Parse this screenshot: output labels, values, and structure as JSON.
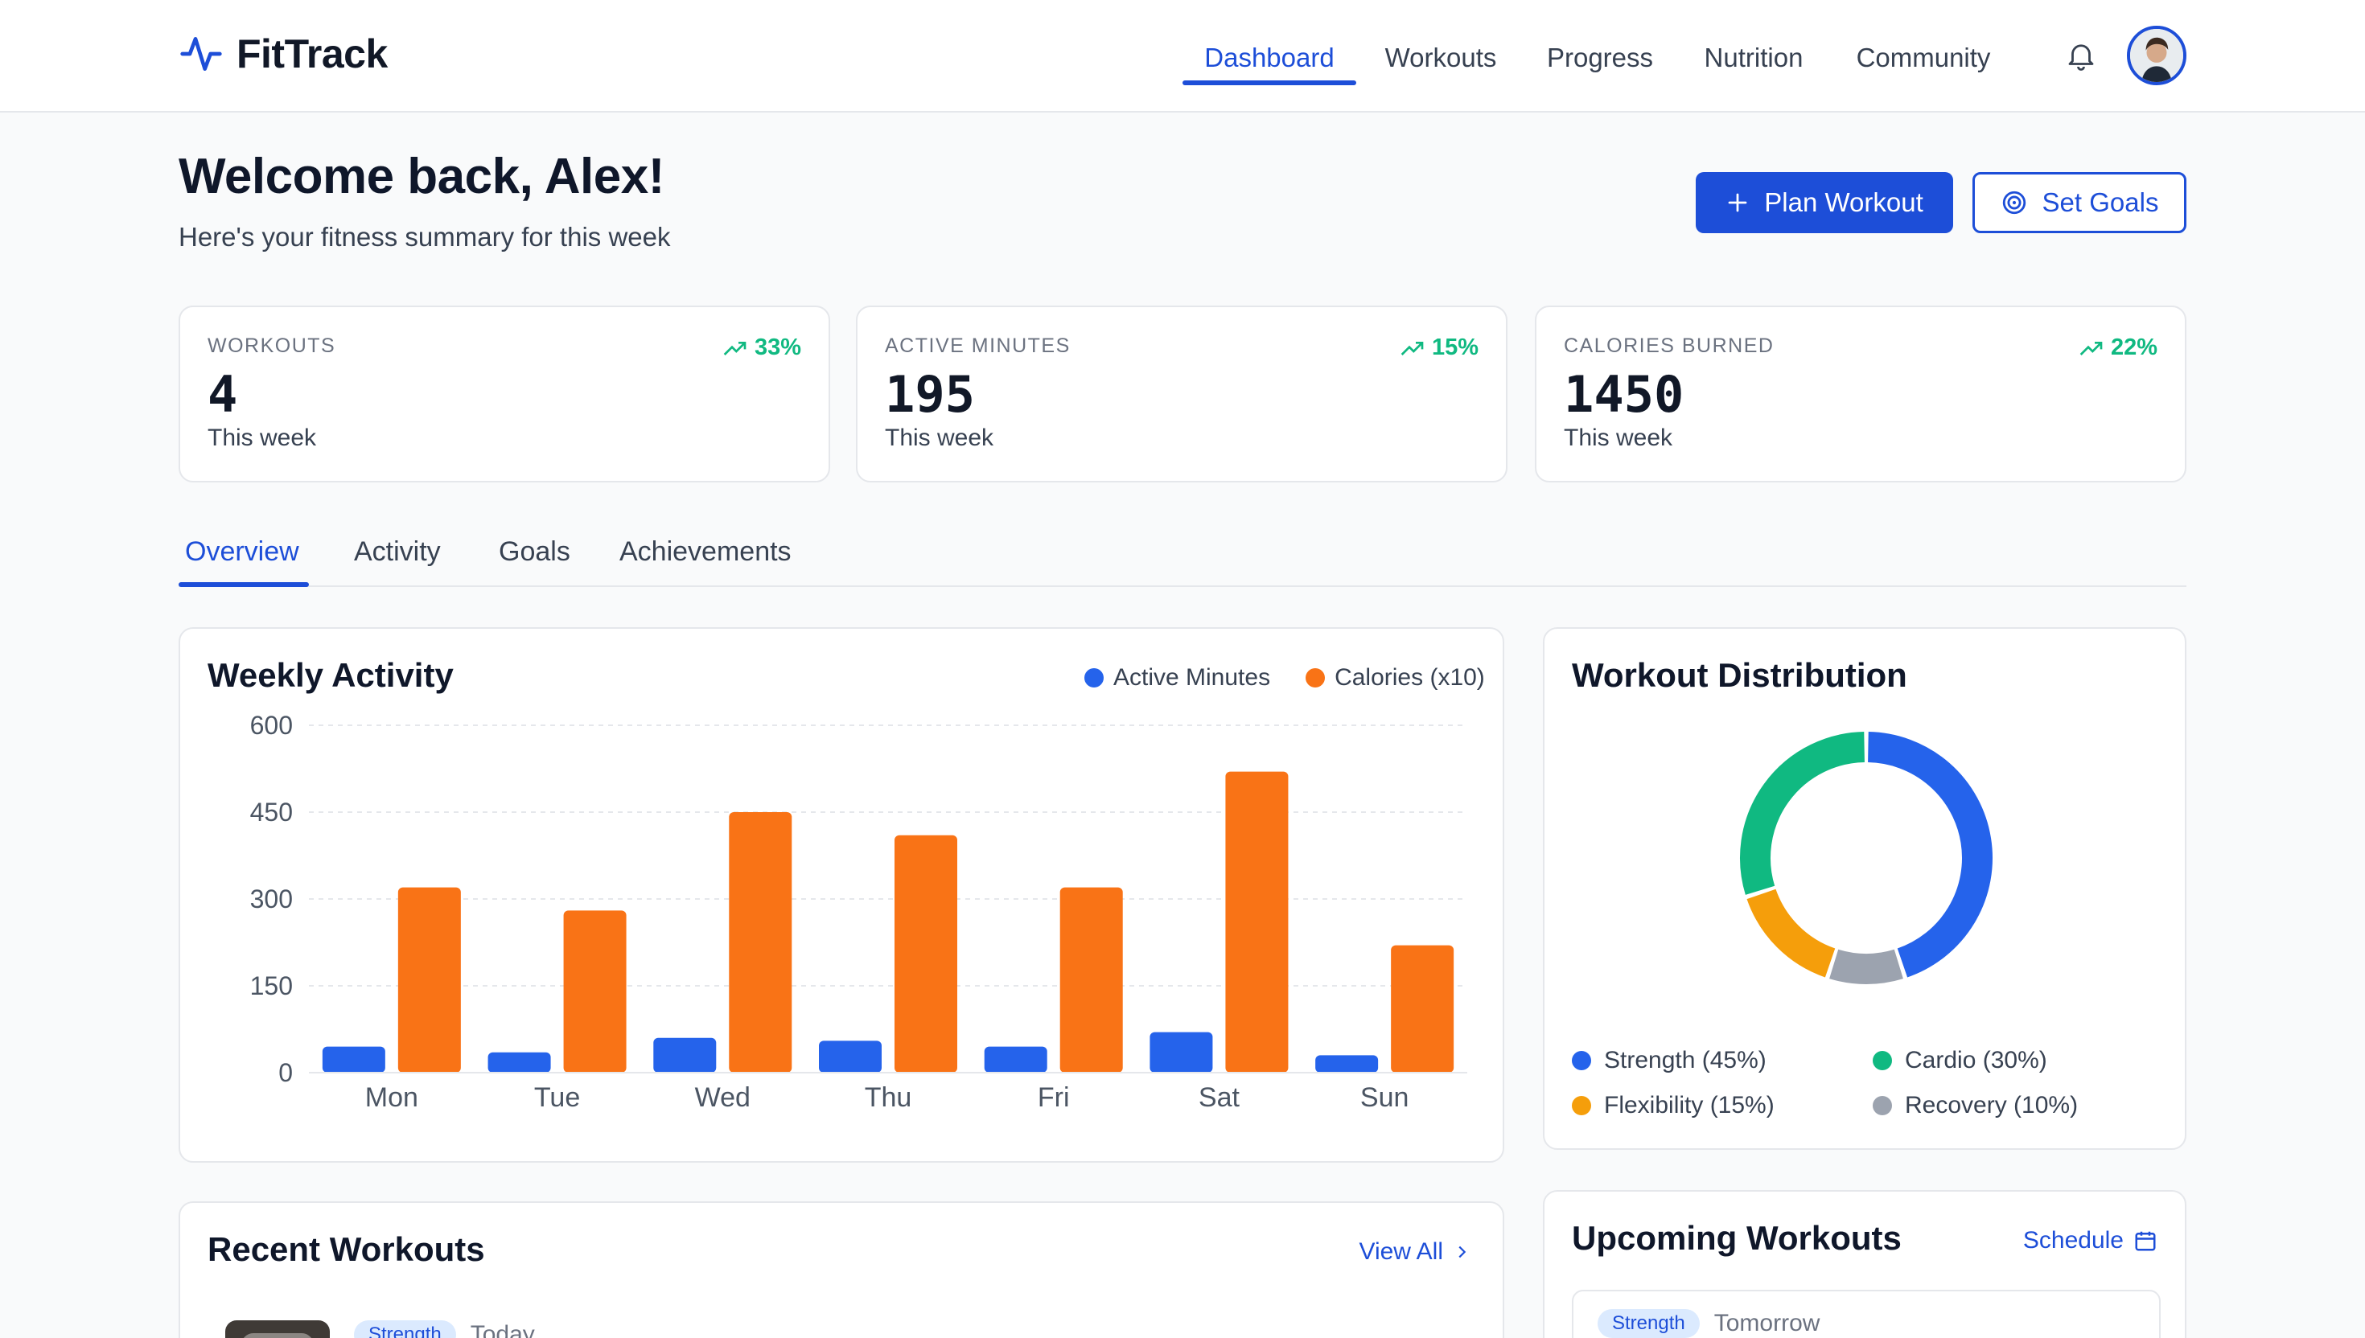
{
  "brand": {
    "name": "FitTrack"
  },
  "nav": {
    "items": [
      "Dashboard",
      "Workouts",
      "Progress",
      "Nutrition",
      "Community"
    ],
    "active": "Dashboard"
  },
  "welcome": {
    "title": "Welcome back, Alex!",
    "subtitle": "Here's your fitness summary for this week"
  },
  "actions": {
    "plan_workout": "Plan Workout",
    "set_goals": "Set Goals"
  },
  "stats": [
    {
      "label": "WORKOUTS",
      "value": "4",
      "period": "This week",
      "trend": "33%"
    },
    {
      "label": "ACTIVE MINUTES",
      "value": "195",
      "period": "This week",
      "trend": "15%"
    },
    {
      "label": "CALORIES BURNED",
      "value": "1450",
      "period": "This week",
      "trend": "22%"
    }
  ],
  "tabs": [
    "Overview",
    "Activity",
    "Goals",
    "Achievements"
  ],
  "weekly_activity": {
    "title": "Weekly Activity"
  },
  "chart_data": [
    {
      "type": "bar",
      "title": "Weekly Activity",
      "categories": [
        "Mon",
        "Tue",
        "Wed",
        "Thu",
        "Fri",
        "Sat",
        "Sun"
      ],
      "series": [
        {
          "name": "Active Minutes",
          "color": "#2563eb",
          "values": [
            45,
            35,
            60,
            55,
            45,
            70,
            30
          ]
        },
        {
          "name": "Calories (x10)",
          "color": "#f97316",
          "values": [
            320,
            280,
            450,
            410,
            320,
            520,
            220
          ]
        }
      ],
      "y_ticks": [
        0,
        150,
        300,
        450,
        600
      ],
      "ylim": [
        0,
        600
      ],
      "grid": true,
      "legend": "top-right"
    },
    {
      "type": "pie",
      "title": "Workout Distribution",
      "categories": [
        "Strength",
        "Recovery",
        "Flexibility",
        "Cardio"
      ],
      "values": [
        45,
        10,
        15,
        30
      ],
      "colors": [
        "#2563eb",
        "#9ca3af",
        "#f59e0b",
        "#10b981"
      ]
    }
  ],
  "distribution": {
    "title": "Workout Distribution",
    "legend": [
      {
        "label": "Strength (45%)",
        "color": "#2563eb"
      },
      {
        "label": "Cardio (30%)",
        "color": "#10b981"
      },
      {
        "label": "Flexibility (15%)",
        "color": "#f59e0b"
      },
      {
        "label": "Recovery (10%)",
        "color": "#9ca3af"
      }
    ]
  },
  "recent_workouts": {
    "title": "Recent Workouts",
    "view_all": "View All",
    "first_item": {
      "badge": "Strength",
      "when": "Today"
    }
  },
  "upcoming_workouts": {
    "title": "Upcoming Workouts",
    "schedule": "Schedule",
    "first_item": {
      "badge": "Strength",
      "when": "Tomorrow"
    }
  }
}
